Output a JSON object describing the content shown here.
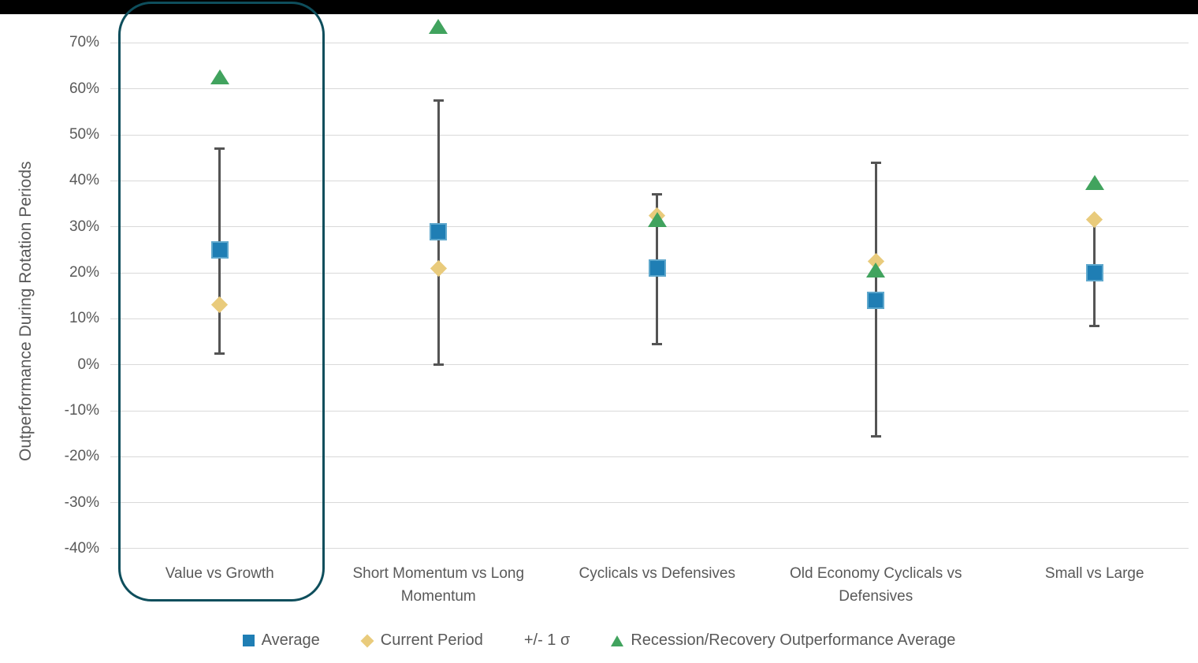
{
  "page": {
    "top_bar_color": "#000000",
    "background_color": "#ffffff"
  },
  "colors": {
    "average_blue": "#1F7EB4",
    "average_blue_border": "#5FA8CD",
    "current_period_yellow": "#E9CB7C",
    "recession_green": "#41A35E",
    "error_bar": "#545454",
    "gridline": "#D9D9D9",
    "axis_text": "#595959",
    "highlight_teal": "#0E4E5C"
  },
  "legend": {
    "items": [
      {
        "id": "average",
        "label": "Average",
        "marker": "square",
        "color": "#1F7EB4"
      },
      {
        "id": "current-period",
        "label": "Current Period",
        "marker": "diamond",
        "color": "#E9CB7C"
      },
      {
        "id": "sigma",
        "label": "+/- 1 σ",
        "marker": "none",
        "color": ""
      },
      {
        "id": "recession-recovery",
        "label": "Recession/Recovery Outperformance Average",
        "marker": "triangle",
        "color": "#41A35E"
      }
    ]
  },
  "chart_data": {
    "type": "scatter",
    "title": "",
    "xlabel": "",
    "ylabel": "Outperformance During Rotation Periods",
    "categories": [
      "Value vs Growth",
      "Short Momentum vs Long Momentum",
      "Cyclicals vs Defensives",
      "Old Economy Cyclicals vs Defensives",
      "Small vs Large"
    ],
    "series": [
      {
        "name": "Average",
        "marker": "square",
        "color": "#1F7EB4",
        "values": [
          25,
          29,
          21,
          14,
          20
        ]
      },
      {
        "name": "Current Period",
        "marker": "diamond",
        "color": "#E9CB7C",
        "values": [
          13,
          21,
          32.5,
          22.5,
          31.5
        ]
      },
      {
        "name": "Recession/Recovery Outperformance Average",
        "marker": "triangle",
        "color": "#41A35E",
        "values": [
          62.5,
          73.5,
          31.5,
          20.5,
          39.5
        ]
      }
    ],
    "error_bars": {
      "name": "+/- 1 σ",
      "high": [
        47,
        57.5,
        37,
        44,
        32
      ],
      "low": [
        2.5,
        0,
        4.5,
        -15.5,
        8.5
      ]
    },
    "yticks": [
      70,
      60,
      50,
      40,
      30,
      20,
      10,
      0,
      -10,
      -20,
      -30,
      -40
    ],
    "ytick_labels": [
      "70%",
      "60%",
      "50%",
      "40%",
      "30%",
      "20%",
      "10%",
      "0%",
      "-10%",
      "-20%",
      "-30%",
      "-40%"
    ],
    "ylim": [
      -45,
      77
    ],
    "grid": true,
    "legend_position": "bottom",
    "annotations": [
      {
        "type": "highlight-box",
        "target": "Value vs Growth",
        "color": "#0E4E5C"
      }
    ]
  }
}
